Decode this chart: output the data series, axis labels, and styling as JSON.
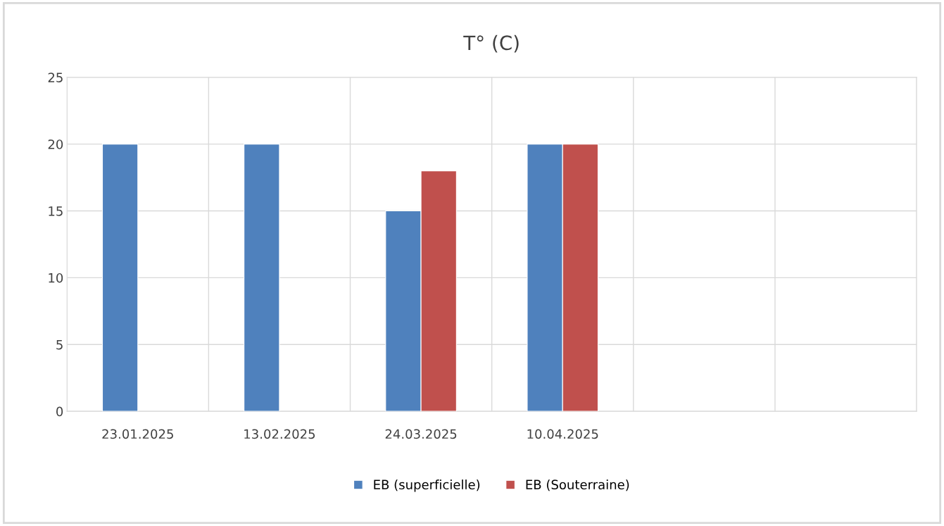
{
  "chart_data": {
    "type": "bar",
    "title": "T° (C)",
    "categories": [
      "23.01.2025",
      "13.02.2025",
      "24.03.2025",
      "10.04.2025",
      null,
      null
    ],
    "series": [
      {
        "name": "EB (superficielle)",
        "color": "#4f81bd",
        "values": [
          20,
          20,
          15,
          20,
          null,
          null
        ]
      },
      {
        "name": "EB (Souterraine)",
        "color": "#c0504d",
        "values": [
          null,
          null,
          18,
          20,
          null,
          null
        ]
      }
    ],
    "ylim": [
      0,
      25
    ],
    "yticks": [
      0,
      5,
      10,
      15,
      20,
      25
    ],
    "grid": true,
    "legend": "bottom"
  }
}
